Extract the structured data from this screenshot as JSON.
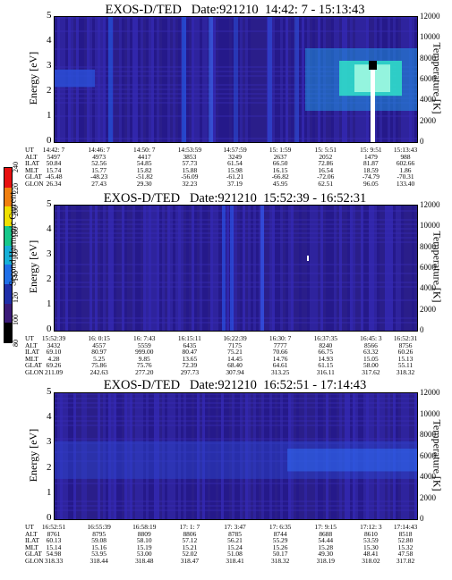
{
  "chart_data": [
    {
      "type": "heatmap",
      "title": "EXOS-D/TED   Date:921210  14:42: 7 - 15:13:43",
      "ylabel": "Energy [eV]",
      "ylabel_right": "Temperature [K]",
      "ylim": [
        0,
        5
      ],
      "yticks": [
        "0",
        "1",
        "2",
        "3",
        "4",
        "5"
      ],
      "ylim_right": [
        0,
        12000
      ],
      "yticks_right": [
        "0",
        "2000",
        "4000",
        "6000",
        "8000",
        "10000",
        "12000"
      ],
      "ephemeris_labels": [
        "UT",
        "ALT",
        "ILAT",
        "MLT",
        "GLAT",
        "GLON"
      ],
      "ephemeris": [
        [
          "14:42: 7",
          "14:46: 7",
          "14:50: 7",
          "14:53:59",
          "14:57:59",
          "15: 1:59",
          "15: 5:51",
          "15: 9:51",
          "15:13:43"
        ],
        [
          "5497",
          "4973",
          "4417",
          "3853",
          "3249",
          "2637",
          "2052",
          "1479",
          "988"
        ],
        [
          "50.84",
          "52.56",
          "54.85",
          "57.73",
          "61.54",
          "66.50",
          "72.86",
          "81.87",
          "602.66"
        ],
        [
          "15.74",
          "15.77",
          "15.82",
          "15.88",
          "15.98",
          "16.15",
          "16.54",
          "18.59",
          "1.86"
        ],
        [
          "-45.48",
          "-48.23",
          "-51.82",
          "-56.09",
          "-61.21",
          "-66.82",
          "-72.06",
          "-74.79",
          "-70.31"
        ],
        [
          "26.34",
          "27.43",
          "29.30",
          "32.23",
          "37.19",
          "45.95",
          "62.51",
          "96.05",
          "133.40"
        ]
      ]
    },
    {
      "type": "heatmap",
      "title": "EXOS-D/TED   Date:921210  15:52:39 - 16:52:31",
      "ylabel": "Energy [eV]",
      "ylabel_right": "Temperature [K]",
      "ylim": [
        0,
        5
      ],
      "yticks": [
        "0",
        "1",
        "2",
        "3",
        "4",
        "5"
      ],
      "ylim_right": [
        0,
        12000
      ],
      "yticks_right": [
        "0",
        "2000",
        "4000",
        "6000",
        "8000",
        "10000",
        "12000"
      ],
      "ephemeris_labels": [
        "UT",
        "ALT",
        "ILAT",
        "MLT",
        "GLAT",
        "GLON"
      ],
      "ephemeris": [
        [
          "15:52:39",
          "16: 0:15",
          "16: 7:43",
          "16:15:11",
          "16:22:39",
          "16:30: 7",
          "16:37:35",
          "16:45: 3",
          "16:52:31"
        ],
        [
          "3432",
          "4557",
          "5559",
          "6435",
          "7175",
          "7777",
          "8240",
          "8566",
          "8756"
        ],
        [
          "69.10",
          "80.97",
          "999.00",
          "80.47",
          "75.21",
          "70.66",
          "66.75",
          "63.32",
          "60.26"
        ],
        [
          "4.28",
          "5.25",
          "9.85",
          "13.65",
          "14.45",
          "14.76",
          "14.93",
          "15.05",
          "15.13"
        ],
        [
          "69.26",
          "75.86",
          "75.76",
          "72.39",
          "68.40",
          "64.61",
          "61.15",
          "58.00",
          "55.11"
        ],
        [
          "211.09",
          "242.63",
          "277.20",
          "297.73",
          "307.94",
          "313.25",
          "316.11",
          "317.62",
          "318.32"
        ]
      ],
      "colorbar": {
        "label": "Second Harmonic Current",
        "ticks": [
          "80",
          "100",
          "120",
          "140",
          "160",
          "180",
          "200",
          "220",
          "240"
        ]
      }
    },
    {
      "type": "heatmap",
      "title": "EXOS-D/TED   Date:921210  16:52:51 - 17:14:43",
      "ylabel": "Energy [eV]",
      "ylabel_right": "Temperature [K]",
      "ylim": [
        0,
        5
      ],
      "yticks": [
        "0",
        "1",
        "2",
        "3",
        "4",
        "5"
      ],
      "ylim_right": [
        0,
        12000
      ],
      "yticks_right": [
        "0",
        "2000",
        "4000",
        "6000",
        "8000",
        "10000",
        "12000"
      ],
      "ephemeris_labels": [
        "UT",
        "ALT",
        "ILAT",
        "MLT",
        "GLAT",
        "GLON"
      ],
      "ephemeris": [
        [
          "16:52:51",
          "16:55:39",
          "16:58:19",
          "17: 1: 7",
          "17: 3:47",
          "17: 6:35",
          "17: 9:15",
          "17:12: 3",
          "17:14:43"
        ],
        [
          "8761",
          "8795",
          "8809",
          "8806",
          "8785",
          "8744",
          "8688",
          "8610",
          "8518"
        ],
        [
          "60.13",
          "59.08",
          "58.10",
          "57.12",
          "56.21",
          "55.29",
          "54.44",
          "53.59",
          "52.80"
        ],
        [
          "15.14",
          "15.16",
          "15.19",
          "15.21",
          "15.24",
          "15.26",
          "15.28",
          "15.30",
          "15.32"
        ],
        [
          "54.98",
          "53.95",
          "53.00",
          "52.02",
          "51.08",
          "50.17",
          "49.30",
          "48.41",
          "47.58"
        ],
        [
          "318.33",
          "318.44",
          "318.48",
          "318.47",
          "318.41",
          "318.32",
          "318.19",
          "318.02",
          "317.82"
        ]
      ]
    }
  ],
  "colors": {
    "background": "#2a1e8a",
    "colorbar": [
      "#000000",
      "#3a1a78",
      "#1f2ea8",
      "#1f6fe8",
      "#16b0d8",
      "#16c88a",
      "#f0e000",
      "#f08010",
      "#e81010"
    ]
  }
}
